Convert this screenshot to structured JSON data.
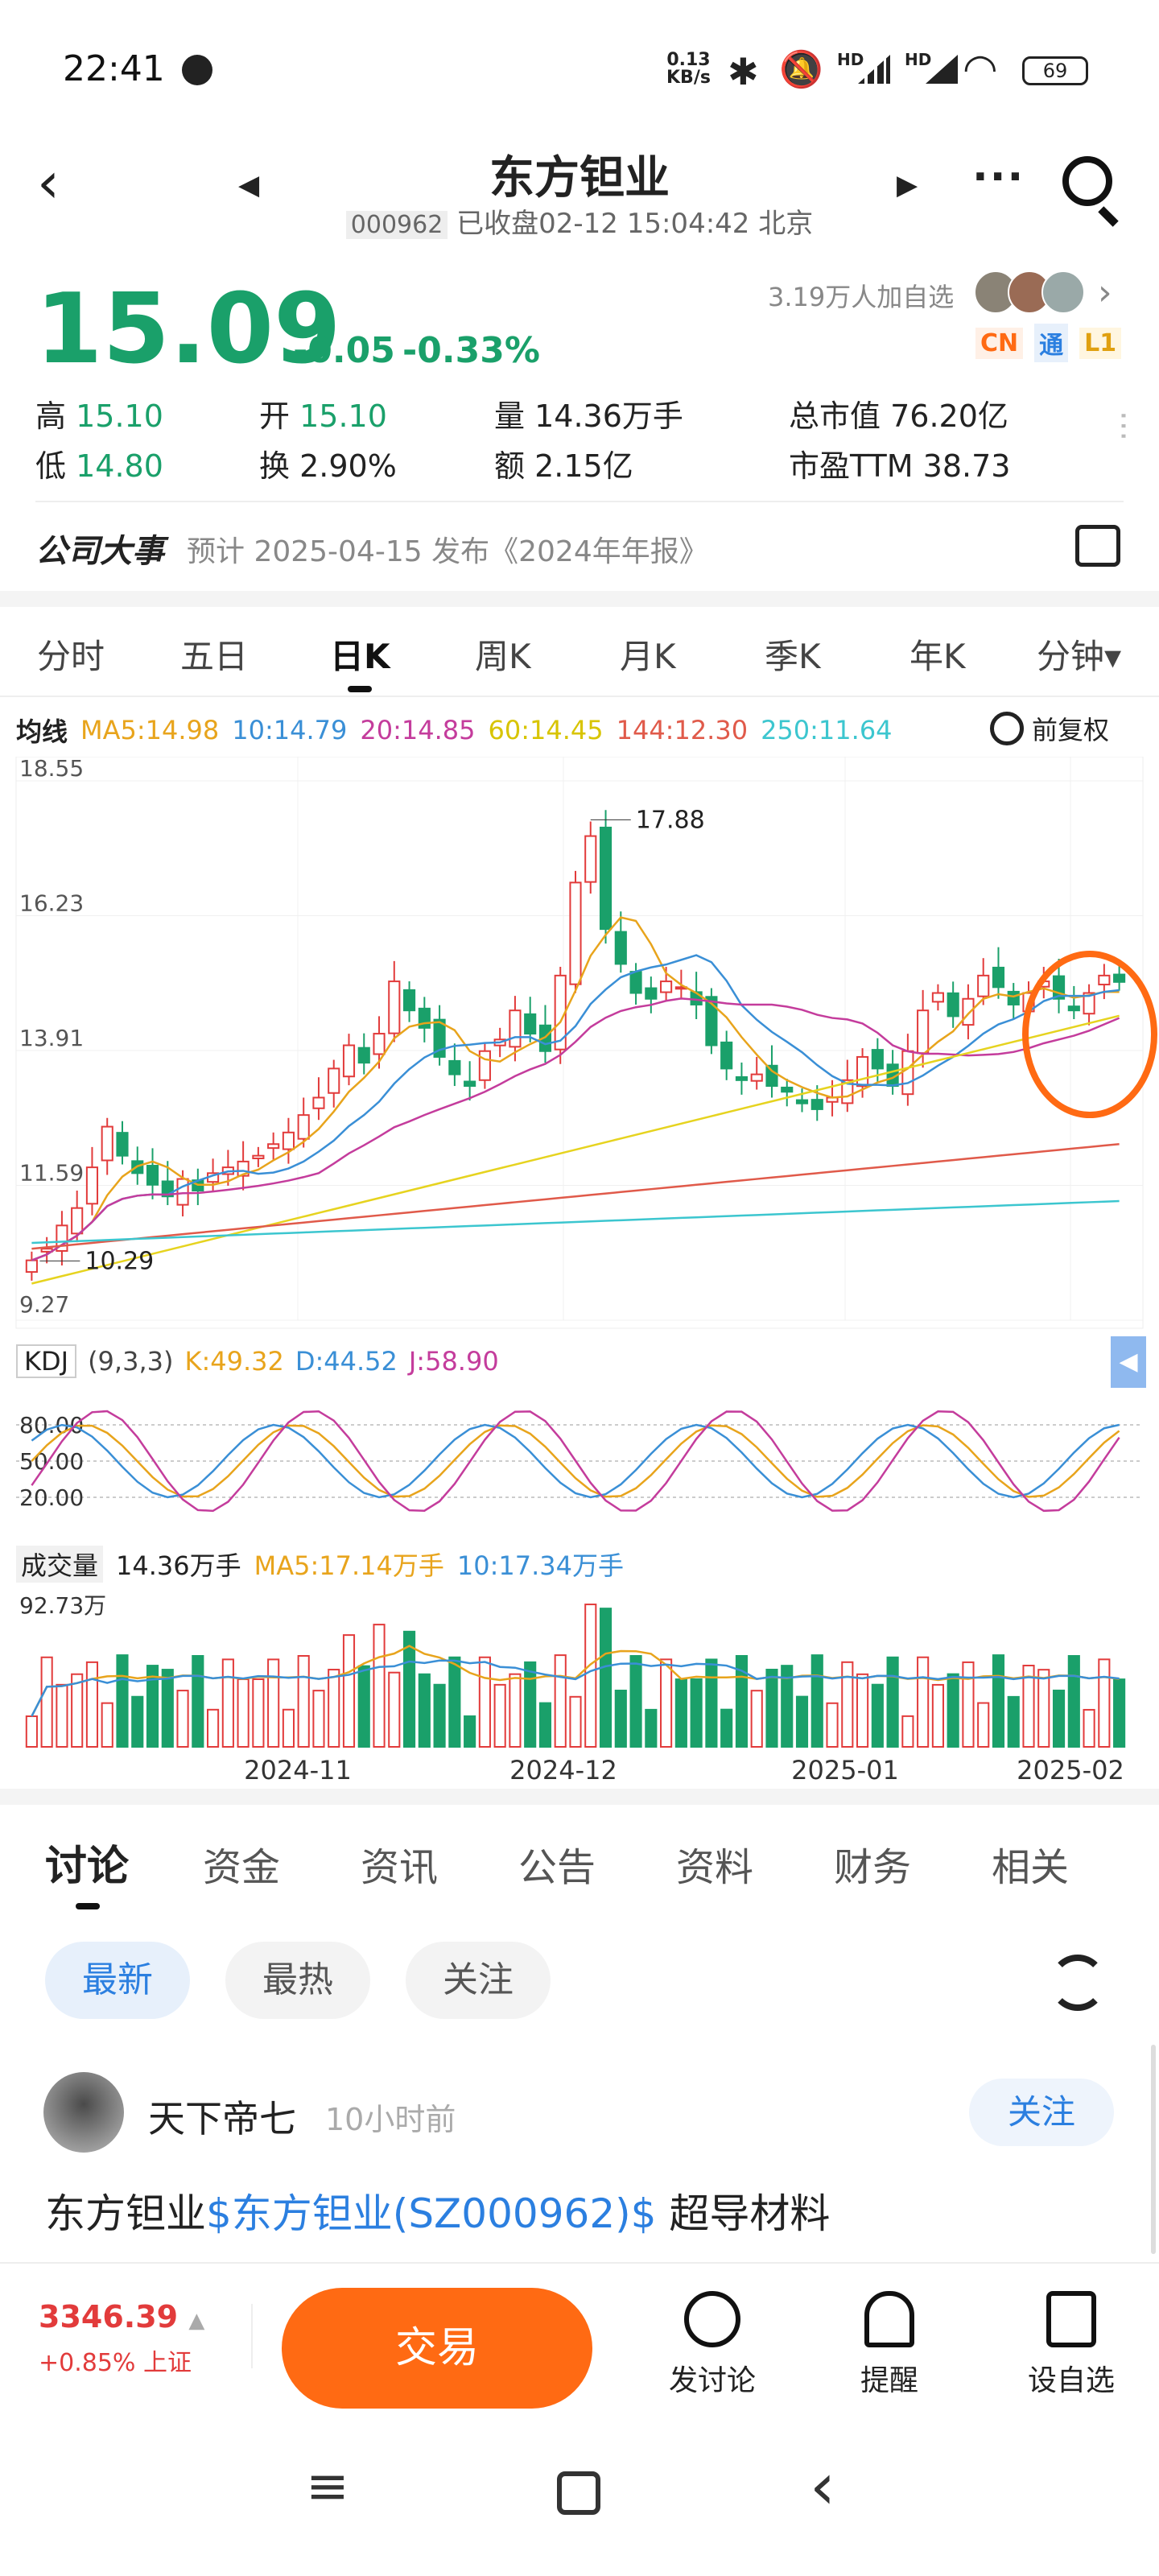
{
  "status_bar": {
    "time": "22:41",
    "net_top": "0.13",
    "net_bottom": "KB/s",
    "signal_hd1": "HD",
    "signal_hd2": "HD",
    "battery": "69"
  },
  "header": {
    "title": "东方钽业",
    "code": "000962",
    "status": "已收盘02-12 15:04:42 北京"
  },
  "quote": {
    "price": "15.09",
    "change": "-0.05",
    "change_pct": "-0.33%",
    "followers": "3.19万人加自选",
    "tags": [
      "CN",
      "通",
      "L1"
    ],
    "high_label": "高",
    "high": "15.10",
    "open_label": "开",
    "open": "15.10",
    "volume_label": "量",
    "volume": "14.36万手",
    "mktcap_label": "总市值",
    "mktcap": "76.20亿",
    "low_label": "低",
    "low": "14.80",
    "turnover_label": "换",
    "turnover": "2.90%",
    "amount_label": "额",
    "amount": "2.15亿",
    "pe_label": "市盈TTM",
    "pe": "38.73"
  },
  "event": {
    "label": "公司大事",
    "text": "预计 2025-04-15 发布《2024年年报》"
  },
  "tabs": [
    "分时",
    "五日",
    "日K",
    "周K",
    "月K",
    "季K",
    "年K",
    "分钟▾"
  ],
  "ma_line": {
    "label": "均线",
    "ma5": "MA5:14.98",
    "ma10": "10:14.79",
    "ma20": "20:14.85",
    "ma60": "60:14.45",
    "ma144": "144:12.30",
    "ma250": "250:11.64",
    "adjust": "前复权"
  },
  "chart_data": {
    "type": "candlestick",
    "y_ticks": [
      "18.55",
      "16.23",
      "13.91",
      "11.59",
      "9.27"
    ],
    "ylim": [
      9.27,
      18.55
    ],
    "x_ticks": [
      "2024-11",
      "2024-12",
      "2025-01",
      "2025-02"
    ],
    "max_label": "17.88",
    "min_label": "10.29",
    "closes": [
      10.3,
      10.5,
      10.9,
      11.2,
      11.9,
      12.6,
      12.1,
      11.8,
      11.6,
      11.4,
      11.7,
      11.5,
      11.8,
      11.9,
      12.0,
      12.1,
      12.3,
      12.5,
      12.8,
      13.1,
      13.6,
      14.0,
      13.7,
      14.2,
      15.1,
      14.6,
      14.3,
      13.8,
      13.5,
      13.3,
      13.9,
      14.1,
      14.6,
      14.2,
      13.9,
      15.2,
      16.8,
      17.6,
      16.0,
      15.4,
      14.9,
      14.8,
      15.1,
      15.0,
      14.7,
      14.0,
      13.6,
      13.4,
      13.5,
      13.3,
      13.2,
      13.0,
      12.9,
      13.1,
      13.4,
      13.8,
      13.6,
      13.3,
      13.9,
      14.6,
      14.9,
      14.5,
      14.8,
      15.2,
      15.0,
      14.7,
      14.9,
      15.1,
      14.8,
      14.6,
      14.9,
      15.2,
      15.09
    ],
    "ma_series": [
      {
        "name": "MA5",
        "color": "#e8a41c"
      },
      {
        "name": "10",
        "color": "#3a8fd6"
      },
      {
        "name": "20",
        "color": "#c43c9c"
      },
      {
        "name": "60",
        "color": "#e6d31f"
      },
      {
        "name": "144",
        "color": "#e05a4a"
      },
      {
        "name": "250",
        "color": "#3cc6cf"
      }
    ],
    "kdj": {
      "label": "KDJ",
      "params": "(9,3,3)",
      "k": "K:49.32",
      "d": "D:44.52",
      "j": "J:58.90",
      "levels": [
        "80.00",
        "50.00",
        "20.00"
      ]
    },
    "volume": {
      "label": "成交量",
      "value": "14.36万手",
      "ma5": "MA5:17.14万手",
      "ma10": "10:17.34万手",
      "max": "92.73万"
    }
  },
  "section_tabs": [
    "讨论",
    "资金",
    "资讯",
    "公告",
    "资料",
    "财务",
    "相关"
  ],
  "filters": [
    "最新",
    "最热",
    "关注"
  ],
  "post": {
    "user": "天下帝七",
    "time": "10小时前",
    "follow": "关注",
    "text_prefix": "东方钽业",
    "text_link": "$东方钽业(SZ000962)$",
    "text_suffix": " 超导材料"
  },
  "bottom_bar": {
    "index": "3346.39",
    "index_change": "+0.85% 上证",
    "trade": "交易",
    "discuss": "发讨论",
    "alert": "提醒",
    "watch": "设自选"
  },
  "colors": {
    "up": "#e23b3b",
    "down": "#1aa06a",
    "accent": "#ff6a13"
  }
}
